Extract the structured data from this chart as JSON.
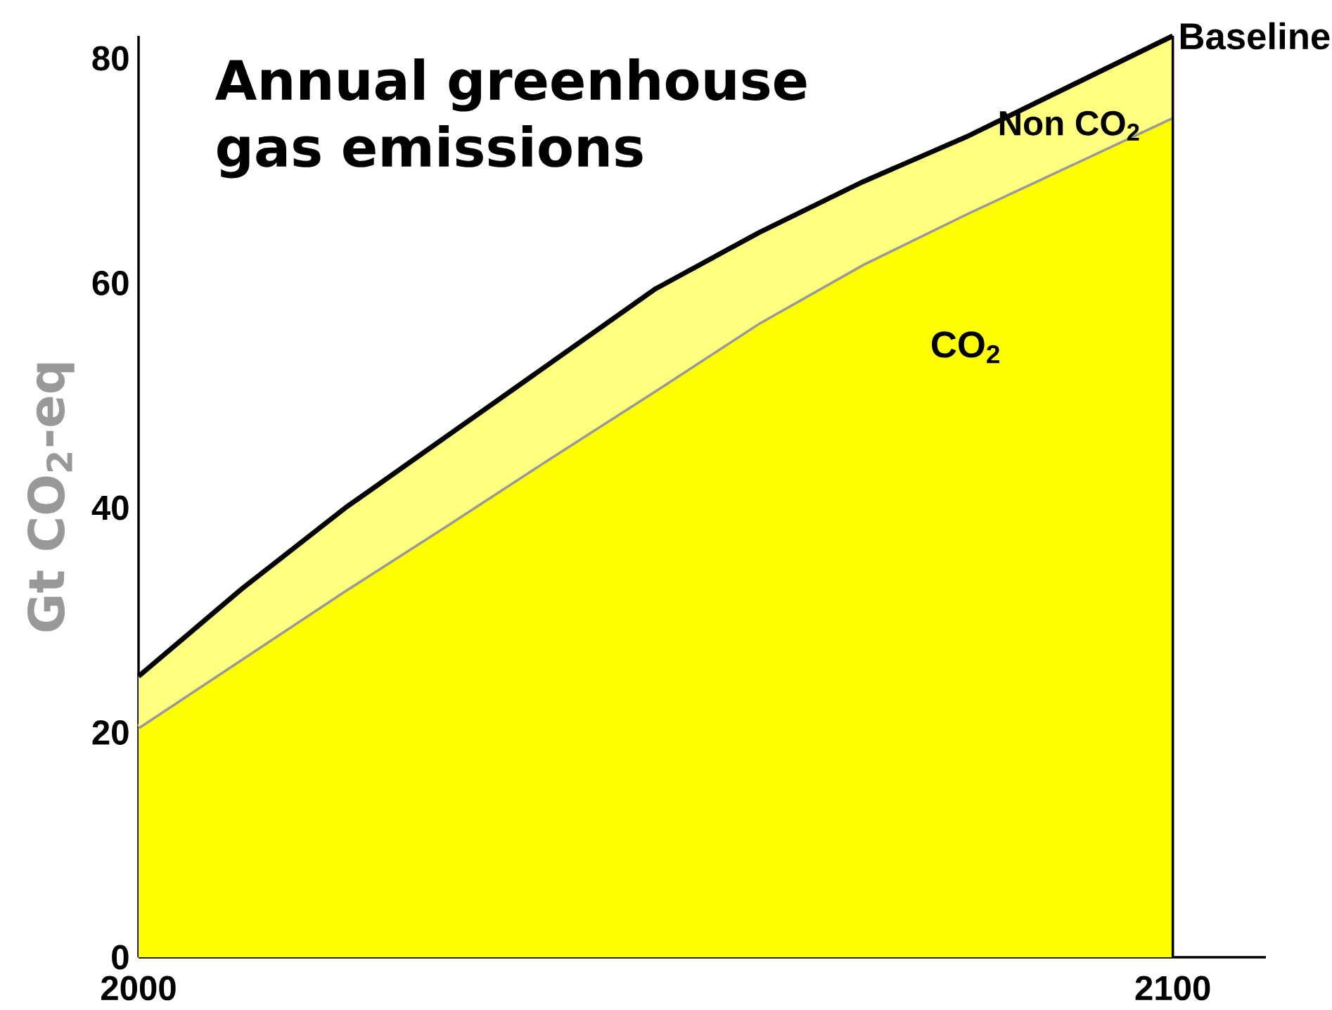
{
  "chart_data": {
    "type": "area",
    "title": "Annual greenhouse gas emissions",
    "ylabel": "Gt CO$_{2}$-eq",
    "stacked": true,
    "x": [
      2000,
      2010,
      2020,
      2030,
      2040,
      2050,
      2060,
      2070,
      2080,
      2090,
      2100
    ],
    "series": [
      {
        "name": "CO$_{2}$",
        "color": "#ffff00",
        "values": [
          20.5,
          26.6,
          32.7,
          38.6,
          44.6,
          50.5,
          56.5,
          61.7,
          66.2,
          70.5,
          74.8
        ]
      },
      {
        "name": "Non CO$_{2}$",
        "color": "#ffff80",
        "values": [
          4.5,
          6.2,
          7.3,
          7.9,
          8.4,
          9.0,
          8.0,
          7.3,
          6.8,
          7.0,
          7.2
        ]
      }
    ],
    "xlim": [
      2000,
      2109
    ],
    "ylim": [
      0,
      82
    ],
    "xticks": [
      2000,
      2100
    ],
    "yticks": [
      0,
      20,
      40,
      60,
      80
    ],
    "ref_lines": [
      {
        "axis": "x",
        "value": 2100,
        "color": "#000000"
      }
    ],
    "annotations": [
      {
        "text": "Baseline",
        "x": 2100,
        "y": 82
      }
    ]
  }
}
